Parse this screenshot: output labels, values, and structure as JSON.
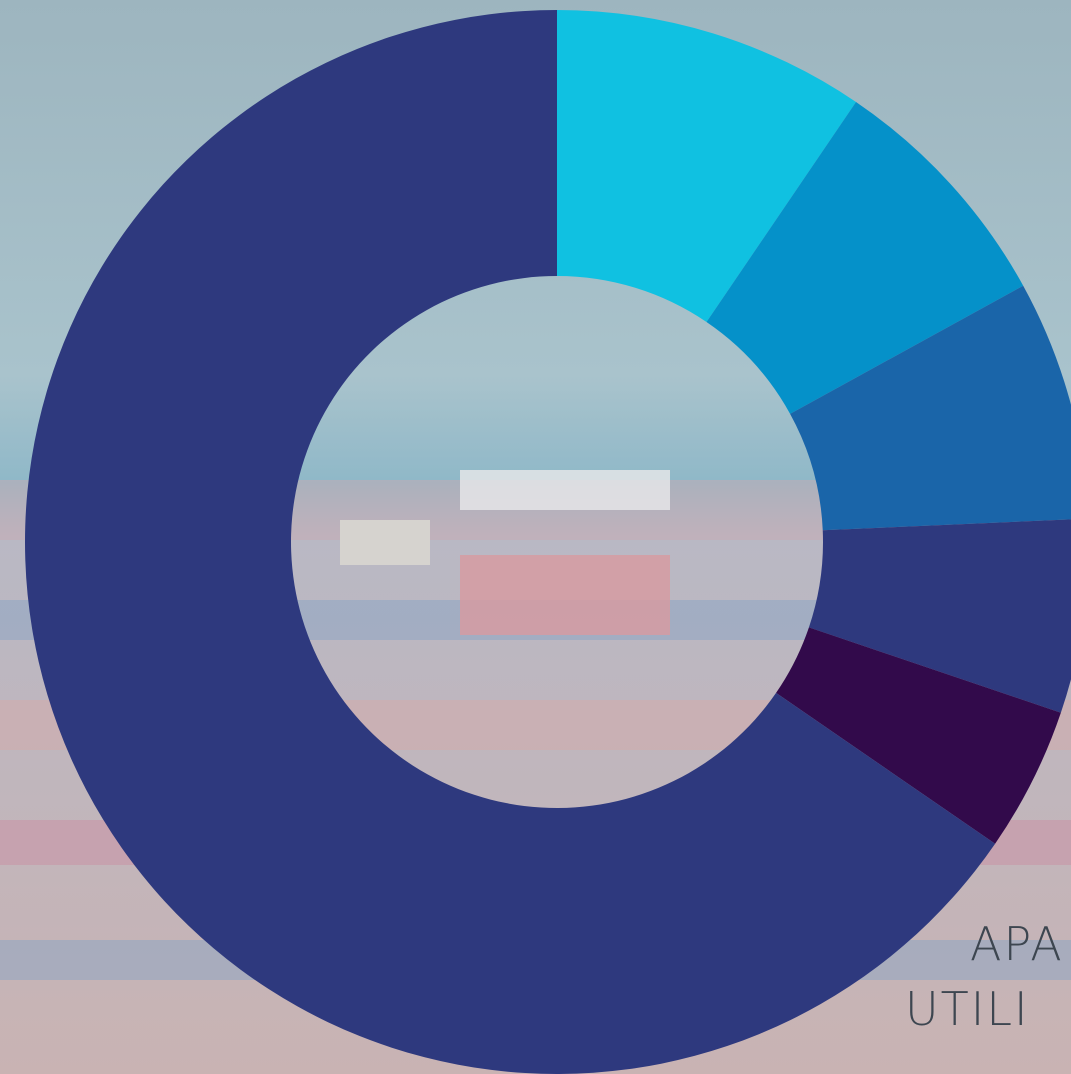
{
  "chart_data": {
    "type": "pie",
    "donut": true,
    "categories": [
      null,
      null,
      null,
      null,
      null,
      null
    ],
    "values": [
      9.5,
      7.5,
      7.3,
      5.9,
      4.4,
      65.4
    ],
    "colors": [
      "#10c1e1",
      "#0591c9",
      "#1a65a9",
      "#2e397e",
      "#320a4b",
      "#2e397e"
    ],
    "annotations": [
      "APA",
      "UTILI"
    ]
  }
}
